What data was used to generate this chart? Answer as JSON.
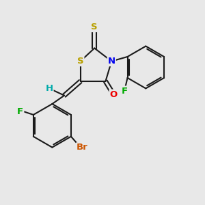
{
  "background_color": "#e8e8e8",
  "atom_colors": {
    "S": "#b8a000",
    "N": "#0000ee",
    "O": "#ee0000",
    "F": "#00aa00",
    "Br": "#cc5500",
    "H": "#00aaaa",
    "C": "#1a1a1a"
  },
  "bond_color": "#1a1a1a",
  "bond_width": 1.5,
  "font_size_atom": 9.5,
  "xlim": [
    0,
    10
  ],
  "ylim": [
    0,
    10
  ]
}
